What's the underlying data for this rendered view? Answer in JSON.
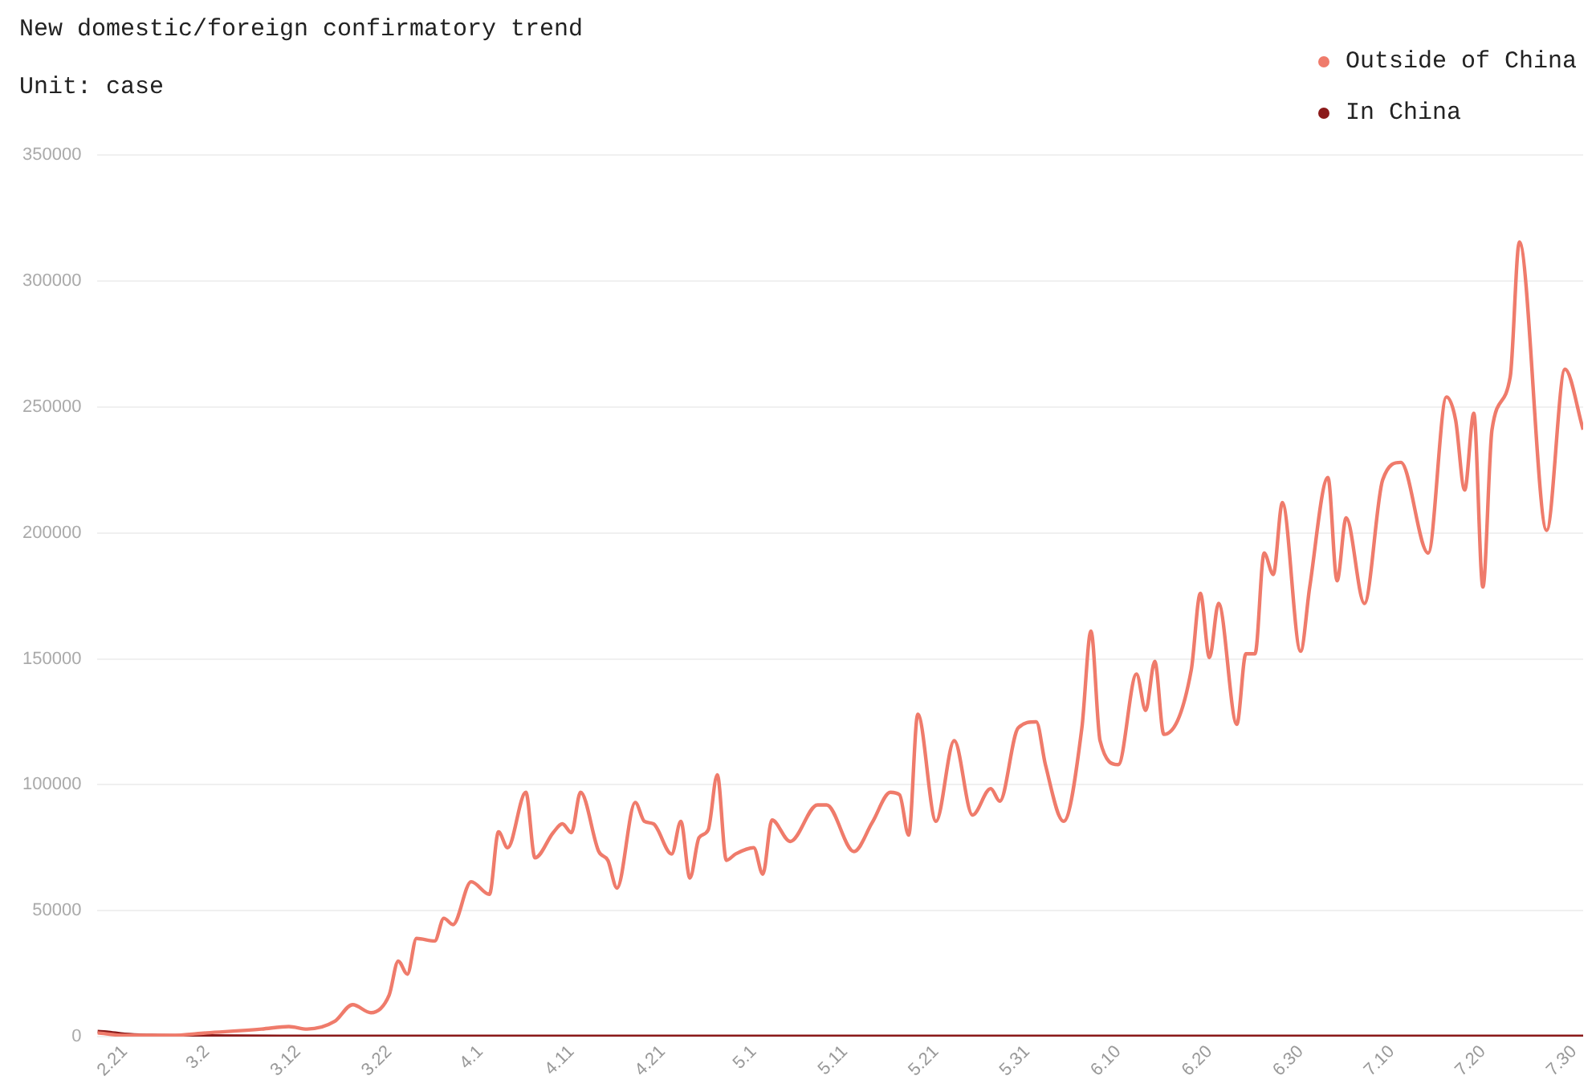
{
  "chart_data": {
    "type": "line",
    "title": "New domestic/foreign confirmatory trend",
    "subtitle": "Unit: case",
    "xlim": [
      "--02-18",
      "--07-31"
    ],
    "ylim": [
      0,
      350000
    ],
    "xticks": [
      {
        "value": "--02-21",
        "label": "2.21"
      },
      {
        "value": "--03-02",
        "label": "3.2"
      },
      {
        "value": "--03-12",
        "label": "3.12"
      },
      {
        "value": "--03-22",
        "label": "3.22"
      },
      {
        "value": "--04-01",
        "label": "4.1"
      },
      {
        "value": "--04-11",
        "label": "4.11"
      },
      {
        "value": "--04-21",
        "label": "4.21"
      },
      {
        "value": "--05-01",
        "label": "5.1"
      },
      {
        "value": "--05-11",
        "label": "5.11"
      },
      {
        "value": "--05-21",
        "label": "5.21"
      },
      {
        "value": "--05-31",
        "label": "5.31"
      },
      {
        "value": "--06-10",
        "label": "6.10"
      },
      {
        "value": "--06-20",
        "label": "6.20"
      },
      {
        "value": "--06-30",
        "label": "6.30"
      },
      {
        "value": "--07-10",
        "label": "7.10"
      },
      {
        "value": "--07-20",
        "label": "7.20"
      },
      {
        "value": "--07-30",
        "label": "7.30"
      }
    ],
    "yticks": [
      0,
      50000,
      100000,
      150000,
      200000,
      250000,
      300000,
      350000
    ],
    "grid": "y",
    "legend": "top right",
    "marker": "none",
    "line_style": "solid",
    "series": [
      {
        "name": "Outside of China",
        "color": "#ef7b6b",
        "x": [
          "--02-18",
          "--02-21",
          "--02-26",
          "--03-02",
          "--03-08",
          "--03-11",
          "--03-13",
          "--03-16",
          "--03-18",
          "--03-20",
          "--03-22",
          "--03-23",
          "--03-24",
          "--03-25",
          "--03-27",
          "--03-28",
          "--03-29",
          "--03-31",
          "--04-02",
          "--04-03",
          "--04-04",
          "--04-06",
          "--04-07",
          "--04-09",
          "--04-10",
          "--04-11",
          "--04-12",
          "--04-14",
          "--04-15",
          "--04-16",
          "--04-18",
          "--04-19",
          "--04-20",
          "--04-22",
          "--04-23",
          "--04-24",
          "--04-25",
          "--04-26",
          "--04-27",
          "--04-28",
          "--04-29",
          "--05-01",
          "--05-02",
          "--05-03",
          "--05-05",
          "--05-08",
          "--05-09",
          "--05-12",
          "--05-14",
          "--05-16",
          "--05-17",
          "--05-18",
          "--05-19",
          "--05-21",
          "--05-23",
          "--05-25",
          "--05-27",
          "--05-28",
          "--05-30",
          "--06-01",
          "--06-02",
          "--06-04",
          "--06-06",
          "--06-07",
          "--06-08",
          "--06-10",
          "--06-12",
          "--06-13",
          "--06-14",
          "--06-15",
          "--06-18",
          "--06-19",
          "--06-20",
          "--06-21",
          "--06-23",
          "--06-24",
          "--06-25",
          "--06-26",
          "--06-27",
          "--06-28",
          "--06-30",
          "--07-01",
          "--07-03",
          "--07-04",
          "--07-05",
          "--07-07",
          "--07-09",
          "--07-11",
          "--07-14",
          "--07-16",
          "--07-17",
          "--07-18",
          "--07-19",
          "--07-20",
          "--07-21",
          "--07-23",
          "--07-24",
          "--07-27",
          "--07-29",
          "--07-31"
        ],
        "values": [
          1500,
          500,
          500,
          1500,
          3000,
          4000,
          3000,
          6000,
          12700,
          9500,
          16500,
          30000,
          24800,
          39000,
          38000,
          47000,
          44500,
          61500,
          56500,
          81300,
          75000,
          97000,
          71000,
          81000,
          84500,
          81000,
          97000,
          73500,
          70000,
          59000,
          93000,
          85500,
          84500,
          72500,
          85500,
          63000,
          79000,
          82000,
          104000,
          70000,
          72500,
          75000,
          64500,
          86000,
          77500,
          92000,
          92000,
          73500,
          85000,
          97000,
          96000,
          80000,
          128000,
          85500,
          117500,
          88000,
          98500,
          93500,
          122500,
          125000,
          108000,
          85500,
          122500,
          161000,
          117500,
          108000,
          144000,
          129500,
          149000,
          120000,
          145500,
          176000,
          150500,
          172000,
          124000,
          152000,
          152000,
          192000,
          183500,
          212000,
          153000,
          178500,
          222000,
          181000,
          206000,
          172000,
          221000,
          228000,
          192000,
          254000,
          245000,
          217000,
          247500,
          178500,
          241000,
          262000,
          315500,
          201000,
          265000,
          241000
        ]
      },
      {
        "name": "In China",
        "color": "#8b1a1a",
        "x": [
          "--02-18",
          "--02-19",
          "--02-21",
          "--02-24",
          "--03-01",
          "--03-10",
          "--04-15",
          "--07-31"
        ],
        "values": [
          2000,
          1800,
          900,
          500,
          300,
          100,
          100,
          100
        ]
      }
    ]
  }
}
